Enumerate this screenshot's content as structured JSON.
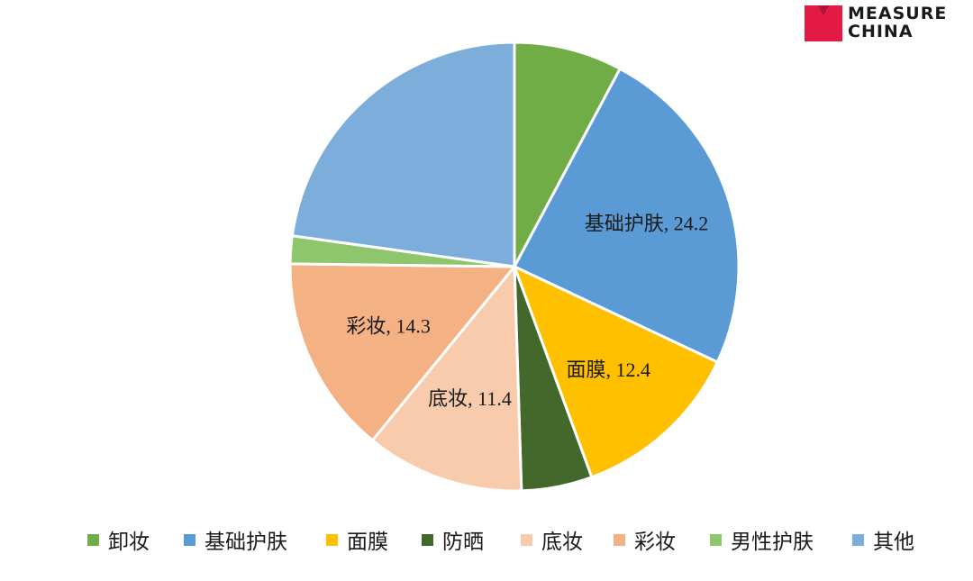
{
  "brand": {
    "line1": "MEASURE",
    "line2": "CHINA",
    "accent_color": "#e31b44"
  },
  "chart_data": {
    "type": "pie",
    "slices": [
      {
        "name": "卸妆",
        "value": 7.8,
        "color": "#70ad47",
        "label": ""
      },
      {
        "name": "基础护肤",
        "value": 24.2,
        "color": "#5b9bd5",
        "label": "基础护肤, 24.2"
      },
      {
        "name": "面膜",
        "value": 12.4,
        "color": "#ffc000",
        "label": "面膜, 12.4"
      },
      {
        "name": "防晒",
        "value": 5.1,
        "color": "#43682b",
        "label": ""
      },
      {
        "name": "底妆",
        "value": 11.4,
        "color": "#f8cbad",
        "label": "底妆, 11.4"
      },
      {
        "name": "彩妆",
        "value": 14.3,
        "color": "#f4b183",
        "label": "彩妆, 14.3"
      },
      {
        "name": "男性护肤",
        "value": 2.0,
        "color": "#8dc66b",
        "label": ""
      },
      {
        "name": "其他",
        "value": 22.8,
        "color": "#7daedb",
        "label": ""
      }
    ],
    "legend_position": "bottom"
  }
}
